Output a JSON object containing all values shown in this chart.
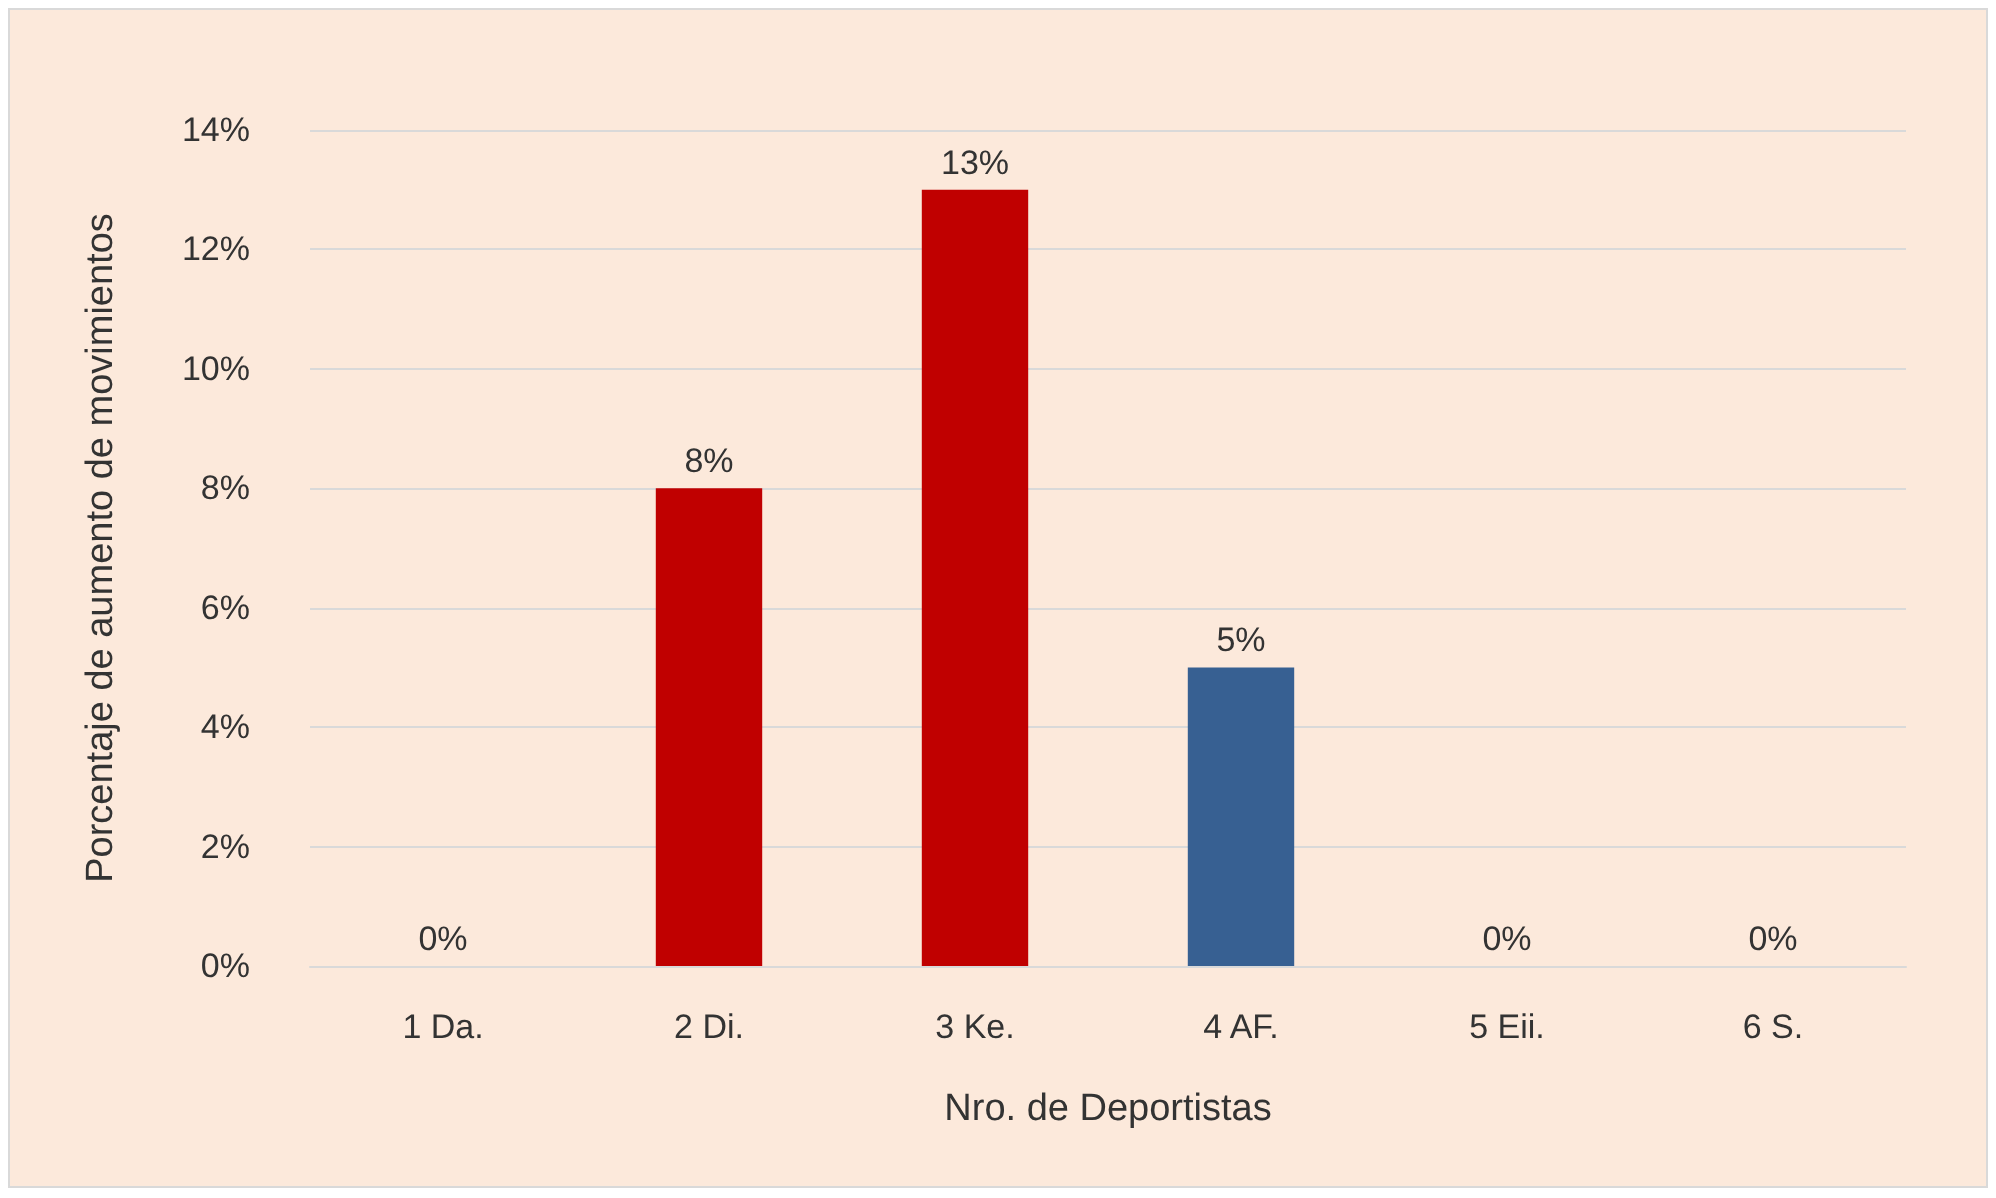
{
  "chart_data": {
    "type": "bar",
    "xlabel": "Nro. de Deportistas",
    "ylabel": "Porcentaje de aumento de movimientos",
    "categories": [
      "1 Da.",
      "2 Di.",
      "3 Ke.",
      "4 AF.",
      "5 Eii.",
      "6 S."
    ],
    "values": [
      0,
      8,
      13,
      5,
      0,
      0
    ],
    "colors": [
      "#c00000",
      "#c00000",
      "#c00000",
      "#376092",
      "#376092",
      "#376092"
    ],
    "value_labels": [
      "0%",
      "8%",
      "13%",
      "5%",
      "0%",
      "0%"
    ],
    "ylim": [
      0,
      14
    ],
    "yticks": [
      {
        "value": 0,
        "label": "0%"
      },
      {
        "value": 2,
        "label": "2%"
      },
      {
        "value": 4,
        "label": "4%"
      },
      {
        "value": 6,
        "label": "6%"
      },
      {
        "value": 8,
        "label": "8%"
      },
      {
        "value": 10,
        "label": "10%"
      },
      {
        "value": 12,
        "label": "12%"
      },
      {
        "value": 14,
        "label": "14%"
      }
    ],
    "grid": true
  }
}
